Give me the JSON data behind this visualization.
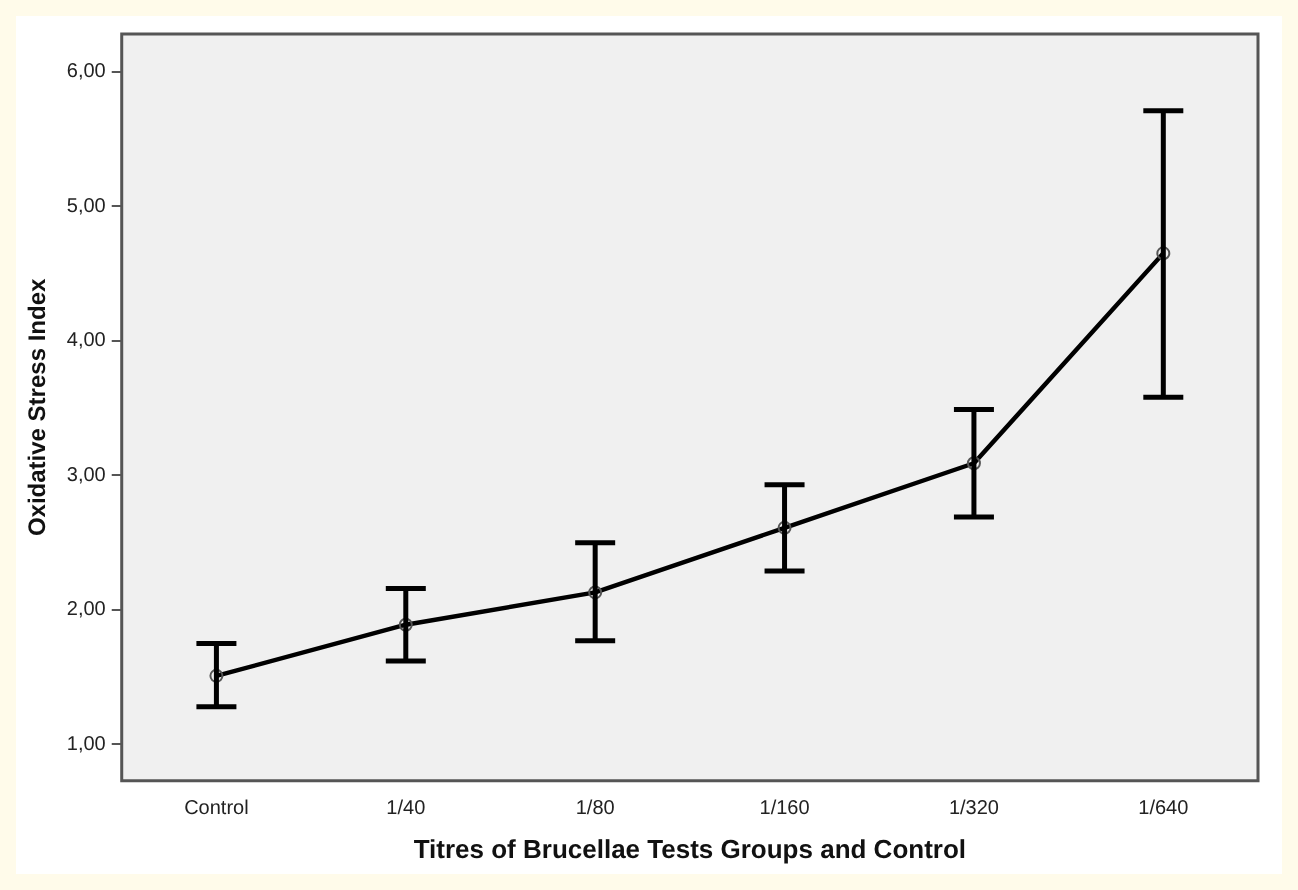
{
  "chart_data": {
    "type": "line",
    "xlabel": "Titres of Brucellae Tests Groups and Control",
    "ylabel": "Oxidative Stress Index",
    "categories": [
      "Control",
      "1/40",
      "1/80",
      "1/160",
      "1/320",
      "1/640"
    ],
    "series": [
      {
        "color": "#000000",
        "values": [
          1.51,
          1.89,
          2.13,
          2.61,
          3.09,
          4.65
        ],
        "errors": [
          [
            1.28,
            1.75
          ],
          [
            1.62,
            2.16
          ],
          [
            1.77,
            2.5
          ],
          [
            2.29,
            2.93
          ],
          [
            2.69,
            3.49
          ],
          [
            3.58,
            5.71
          ]
        ]
      }
    ],
    "ylim": [
      0.73,
      6.28
    ],
    "yticks": [
      {
        "value": 1,
        "label": "1,00"
      },
      {
        "value": 2,
        "label": "2,00"
      },
      {
        "value": 3,
        "label": "3,00"
      },
      {
        "value": 4,
        "label": "4,00"
      },
      {
        "value": 5,
        "label": "5,00"
      },
      {
        "value": 6,
        "label": "6,00"
      }
    ],
    "grid": false,
    "legend": false,
    "marker": "circle",
    "line_style": "solid"
  }
}
